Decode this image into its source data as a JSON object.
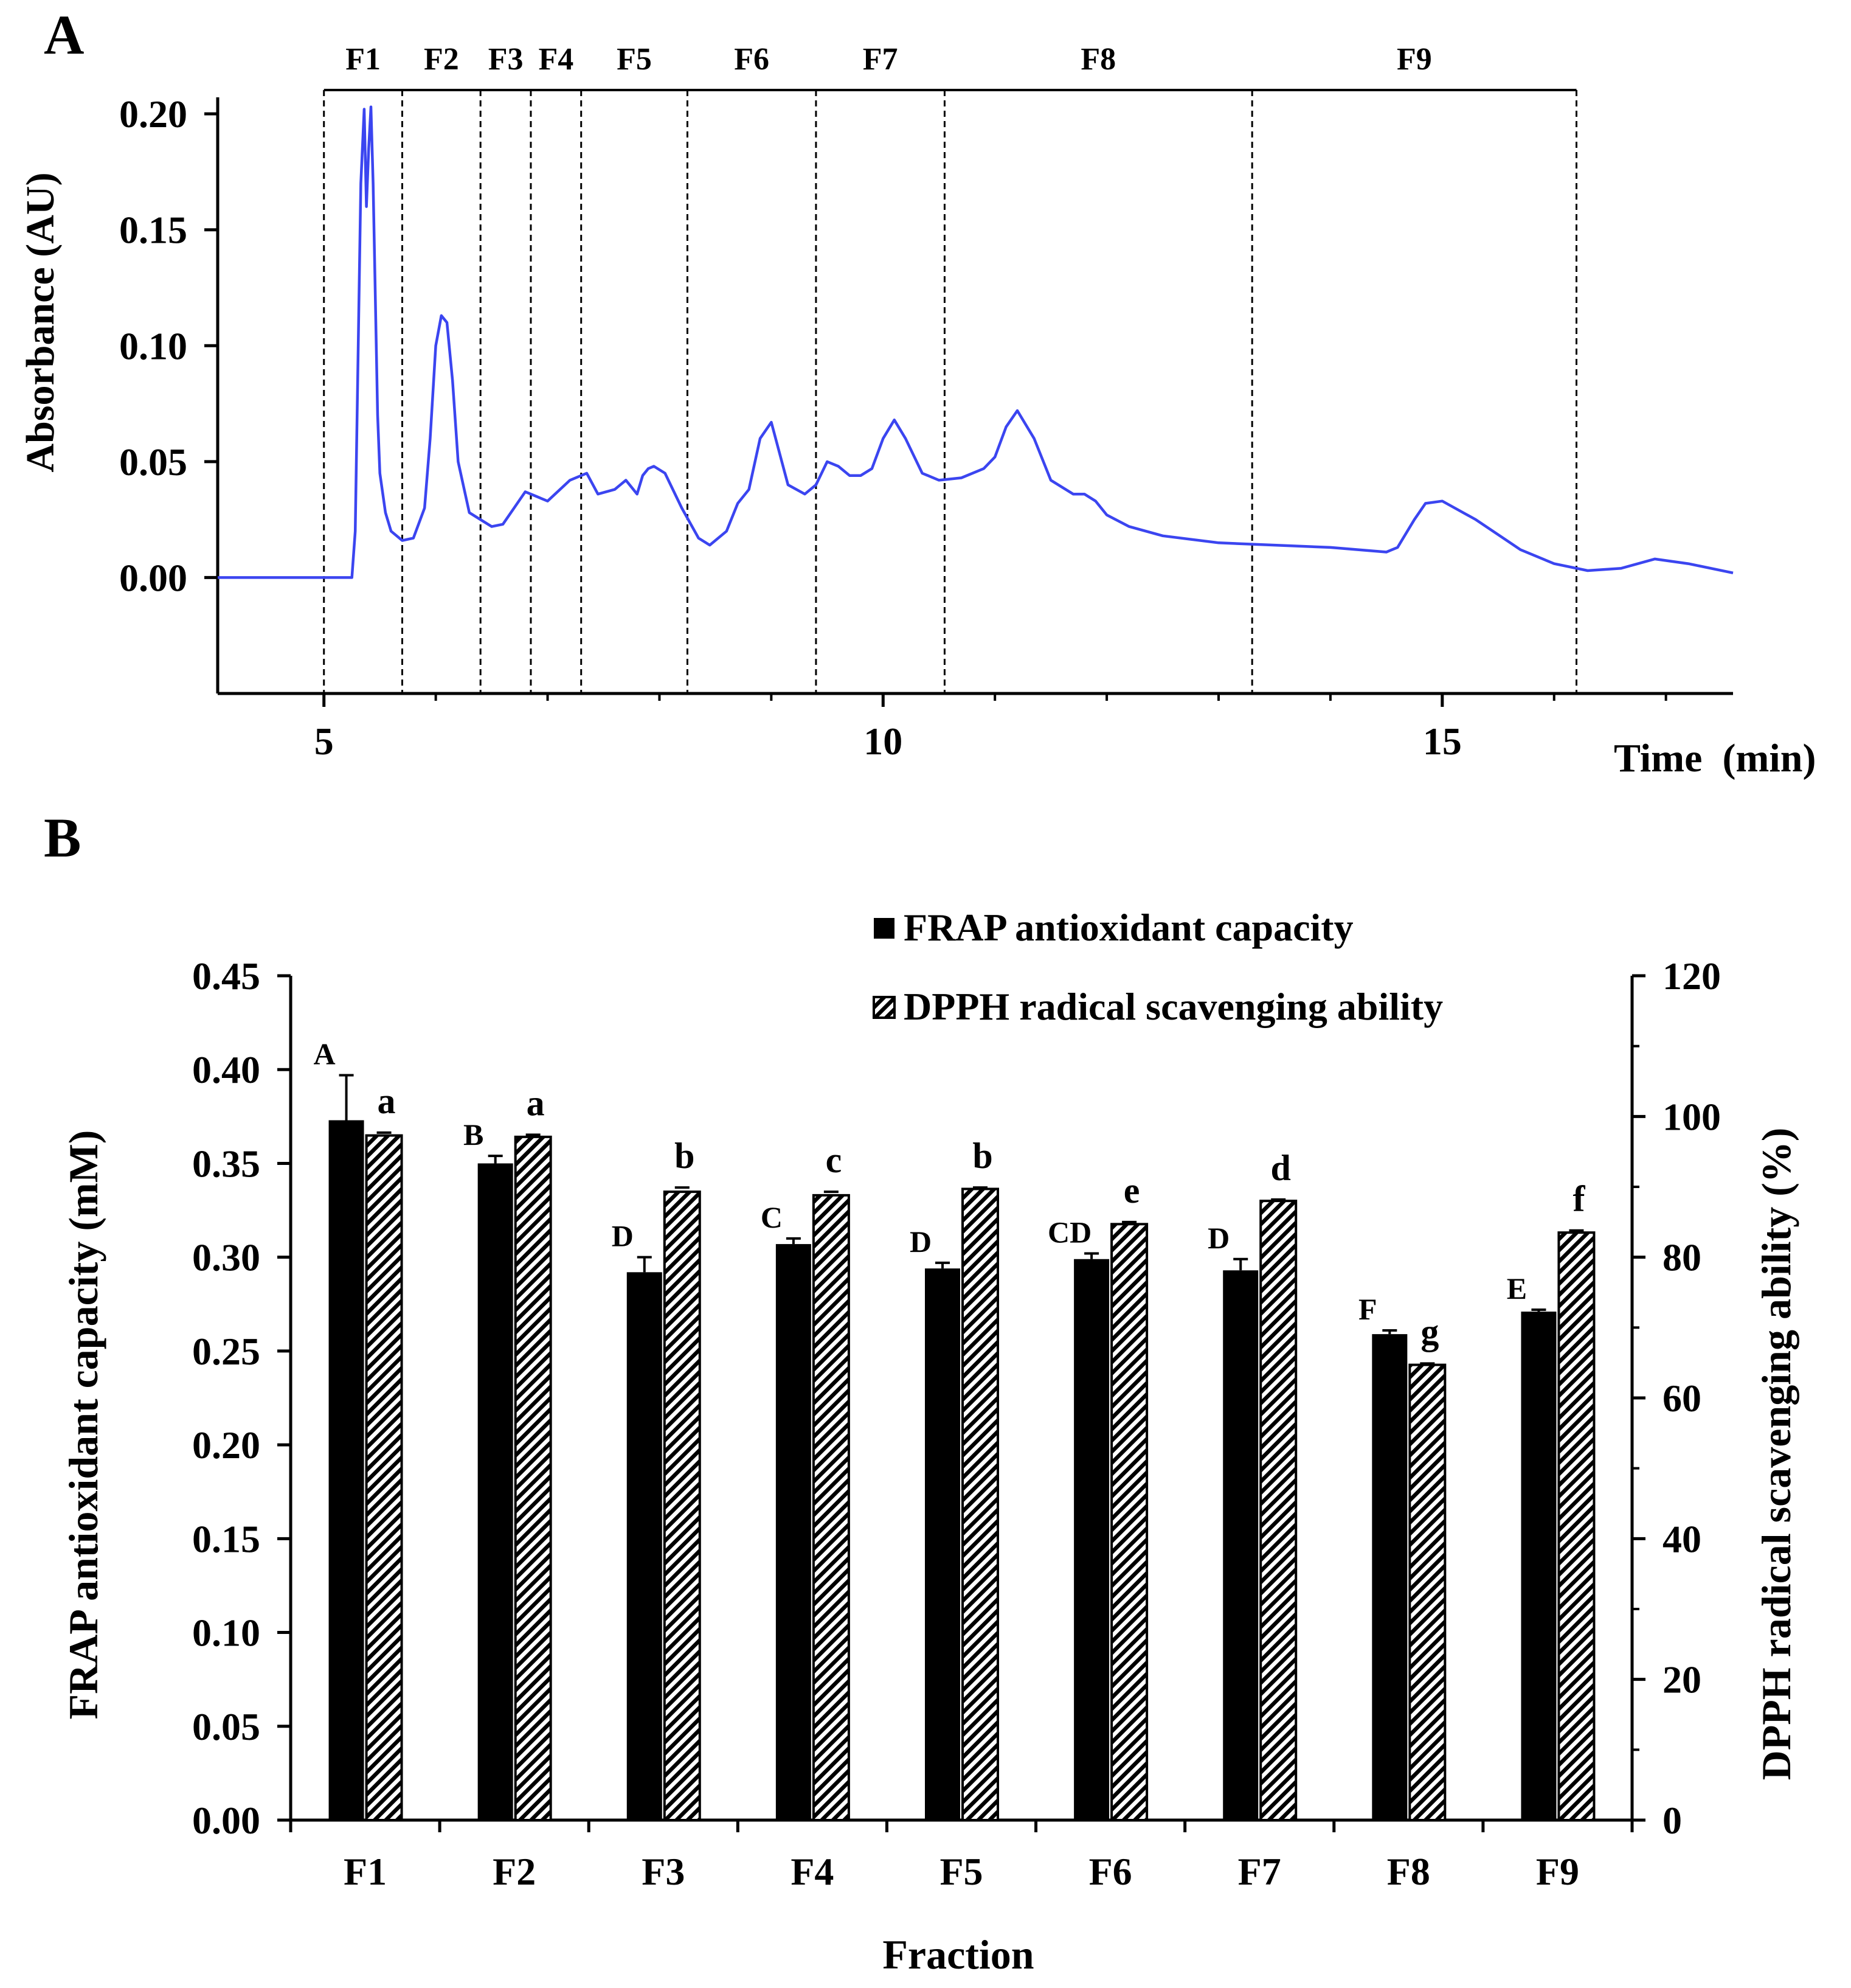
{
  "figure": {
    "panel_a_label": "A",
    "panel_b_label": "B"
  },
  "chart_data": [
    {
      "type": "line",
      "panel": "A",
      "title": "",
      "xlabel": "Time  (min)",
      "ylabel": "Absorbance (AU)",
      "xlim": [
        4.05,
        17.6
      ],
      "ylim": [
        -0.05,
        0.215
      ],
      "x_ticks": [
        5,
        10,
        15
      ],
      "y_ticks": [
        "0.00",
        "0.05",
        "0.10",
        "0.15",
        "0.20"
      ],
      "series_color": "#3b45f0",
      "series": [
        {
          "name": "Absorbance",
          "x": [
            4.05,
            5.0,
            5.25,
            5.28,
            5.3,
            5.33,
            5.36,
            5.38,
            5.4,
            5.42,
            5.44,
            5.46,
            5.48,
            5.5,
            5.55,
            5.6,
            5.7,
            5.8,
            5.9,
            5.95,
            6.0,
            6.05,
            6.1,
            6.15,
            6.2,
            6.3,
            6.4,
            6.5,
            6.6,
            6.7,
            6.8,
            6.9,
            7.0,
            7.2,
            7.35,
            7.45,
            7.6,
            7.7,
            7.8,
            7.85,
            7.9,
            7.95,
            8.05,
            8.2,
            8.35,
            8.45,
            8.6,
            8.7,
            8.8,
            8.9,
            9.0,
            9.15,
            9.3,
            9.4,
            9.5,
            9.6,
            9.7,
            9.8,
            9.9,
            10.0,
            10.1,
            10.2,
            10.35,
            10.5,
            10.7,
            10.9,
            11.0,
            11.1,
            11.2,
            11.35,
            11.5,
            11.7,
            11.8,
            11.9,
            12.0,
            12.2,
            12.5,
            13.0,
            13.5,
            14.0,
            14.5,
            14.6,
            14.75,
            14.85,
            15.0,
            15.3,
            15.7,
            16.0,
            16.3,
            16.6,
            16.9,
            17.2,
            17.6
          ],
          "y": [
            0.0,
            0.0,
            0.0,
            0.02,
            0.08,
            0.17,
            0.202,
            0.16,
            0.185,
            0.203,
            0.17,
            0.12,
            0.07,
            0.045,
            0.028,
            0.02,
            0.016,
            0.017,
            0.03,
            0.06,
            0.1,
            0.113,
            0.11,
            0.085,
            0.05,
            0.028,
            0.025,
            0.022,
            0.023,
            0.03,
            0.037,
            0.035,
            0.033,
            0.042,
            0.045,
            0.036,
            0.038,
            0.042,
            0.036,
            0.044,
            0.047,
            0.048,
            0.045,
            0.03,
            0.017,
            0.014,
            0.02,
            0.032,
            0.038,
            0.06,
            0.067,
            0.04,
            0.036,
            0.04,
            0.05,
            0.048,
            0.044,
            0.044,
            0.047,
            0.06,
            0.068,
            0.06,
            0.045,
            0.042,
            0.043,
            0.047,
            0.052,
            0.065,
            0.072,
            0.06,
            0.042,
            0.036,
            0.036,
            0.033,
            0.027,
            0.022,
            0.018,
            0.015,
            0.014,
            0.013,
            0.011,
            0.013,
            0.025,
            0.032,
            0.033,
            0.025,
            0.012,
            0.006,
            0.003,
            0.004,
            0.008,
            0.006,
            0.002
          ]
        }
      ],
      "fractions": {
        "labels": [
          "F1",
          "F2",
          "F3",
          "F4",
          "F5",
          "F6",
          "F7",
          "F8",
          "F9"
        ],
        "boundaries_min": [
          5.0,
          5.7,
          6.4,
          6.85,
          7.3,
          8.25,
          9.4,
          10.55,
          13.3,
          16.2
        ]
      }
    },
    {
      "type": "bar",
      "panel": "B",
      "title": "",
      "xlabel": "Fraction",
      "ylabel": "FRAP antioxidant capacity (mM)",
      "y2label": "DPPH radical scavenging ability (%)",
      "categories": [
        "F1",
        "F2",
        "F3",
        "F4",
        "F5",
        "F6",
        "F7",
        "F8",
        "F9"
      ],
      "ylim": [
        0,
        0.45
      ],
      "y2lim": [
        0,
        120
      ],
      "y_ticks": [
        "0.00",
        "0.05",
        "0.10",
        "0.15",
        "0.20",
        "0.25",
        "0.30",
        "0.35",
        "0.40",
        "0.45"
      ],
      "y2_ticks": [
        "0",
        "20",
        "40",
        "60",
        "80",
        "100",
        "120"
      ],
      "legend_position": "top-right",
      "series": [
        {
          "name": "FRAP antioxidant capacity",
          "axis": "left",
          "pattern": "solid",
          "color": "#000000",
          "values": [
            0.373,
            0.35,
            0.292,
            0.307,
            0.294,
            0.299,
            0.293,
            0.259,
            0.271
          ],
          "errors": [
            0.024,
            0.004,
            0.008,
            0.003,
            0.003,
            0.003,
            0.006,
            0.002,
            0.001
          ],
          "letters": [
            "A",
            "B",
            "D",
            "C",
            "D",
            "CD",
            "D",
            "F",
            "E"
          ]
        },
        {
          "name": "DPPH radical scavenging ability",
          "axis": "right",
          "pattern": "hatched",
          "color": "#000000",
          "values": [
            97.3,
            97.1,
            89.3,
            88.8,
            89.7,
            84.7,
            88.0,
            64.7,
            83.5
          ],
          "errors": [
            0.4,
            0.3,
            0.6,
            0.5,
            0.2,
            0.3,
            0.2,
            0.2,
            0.3
          ],
          "letters": [
            "a",
            "a",
            "b",
            "c",
            "b",
            "e",
            "d",
            "g",
            "f"
          ]
        }
      ]
    }
  ]
}
